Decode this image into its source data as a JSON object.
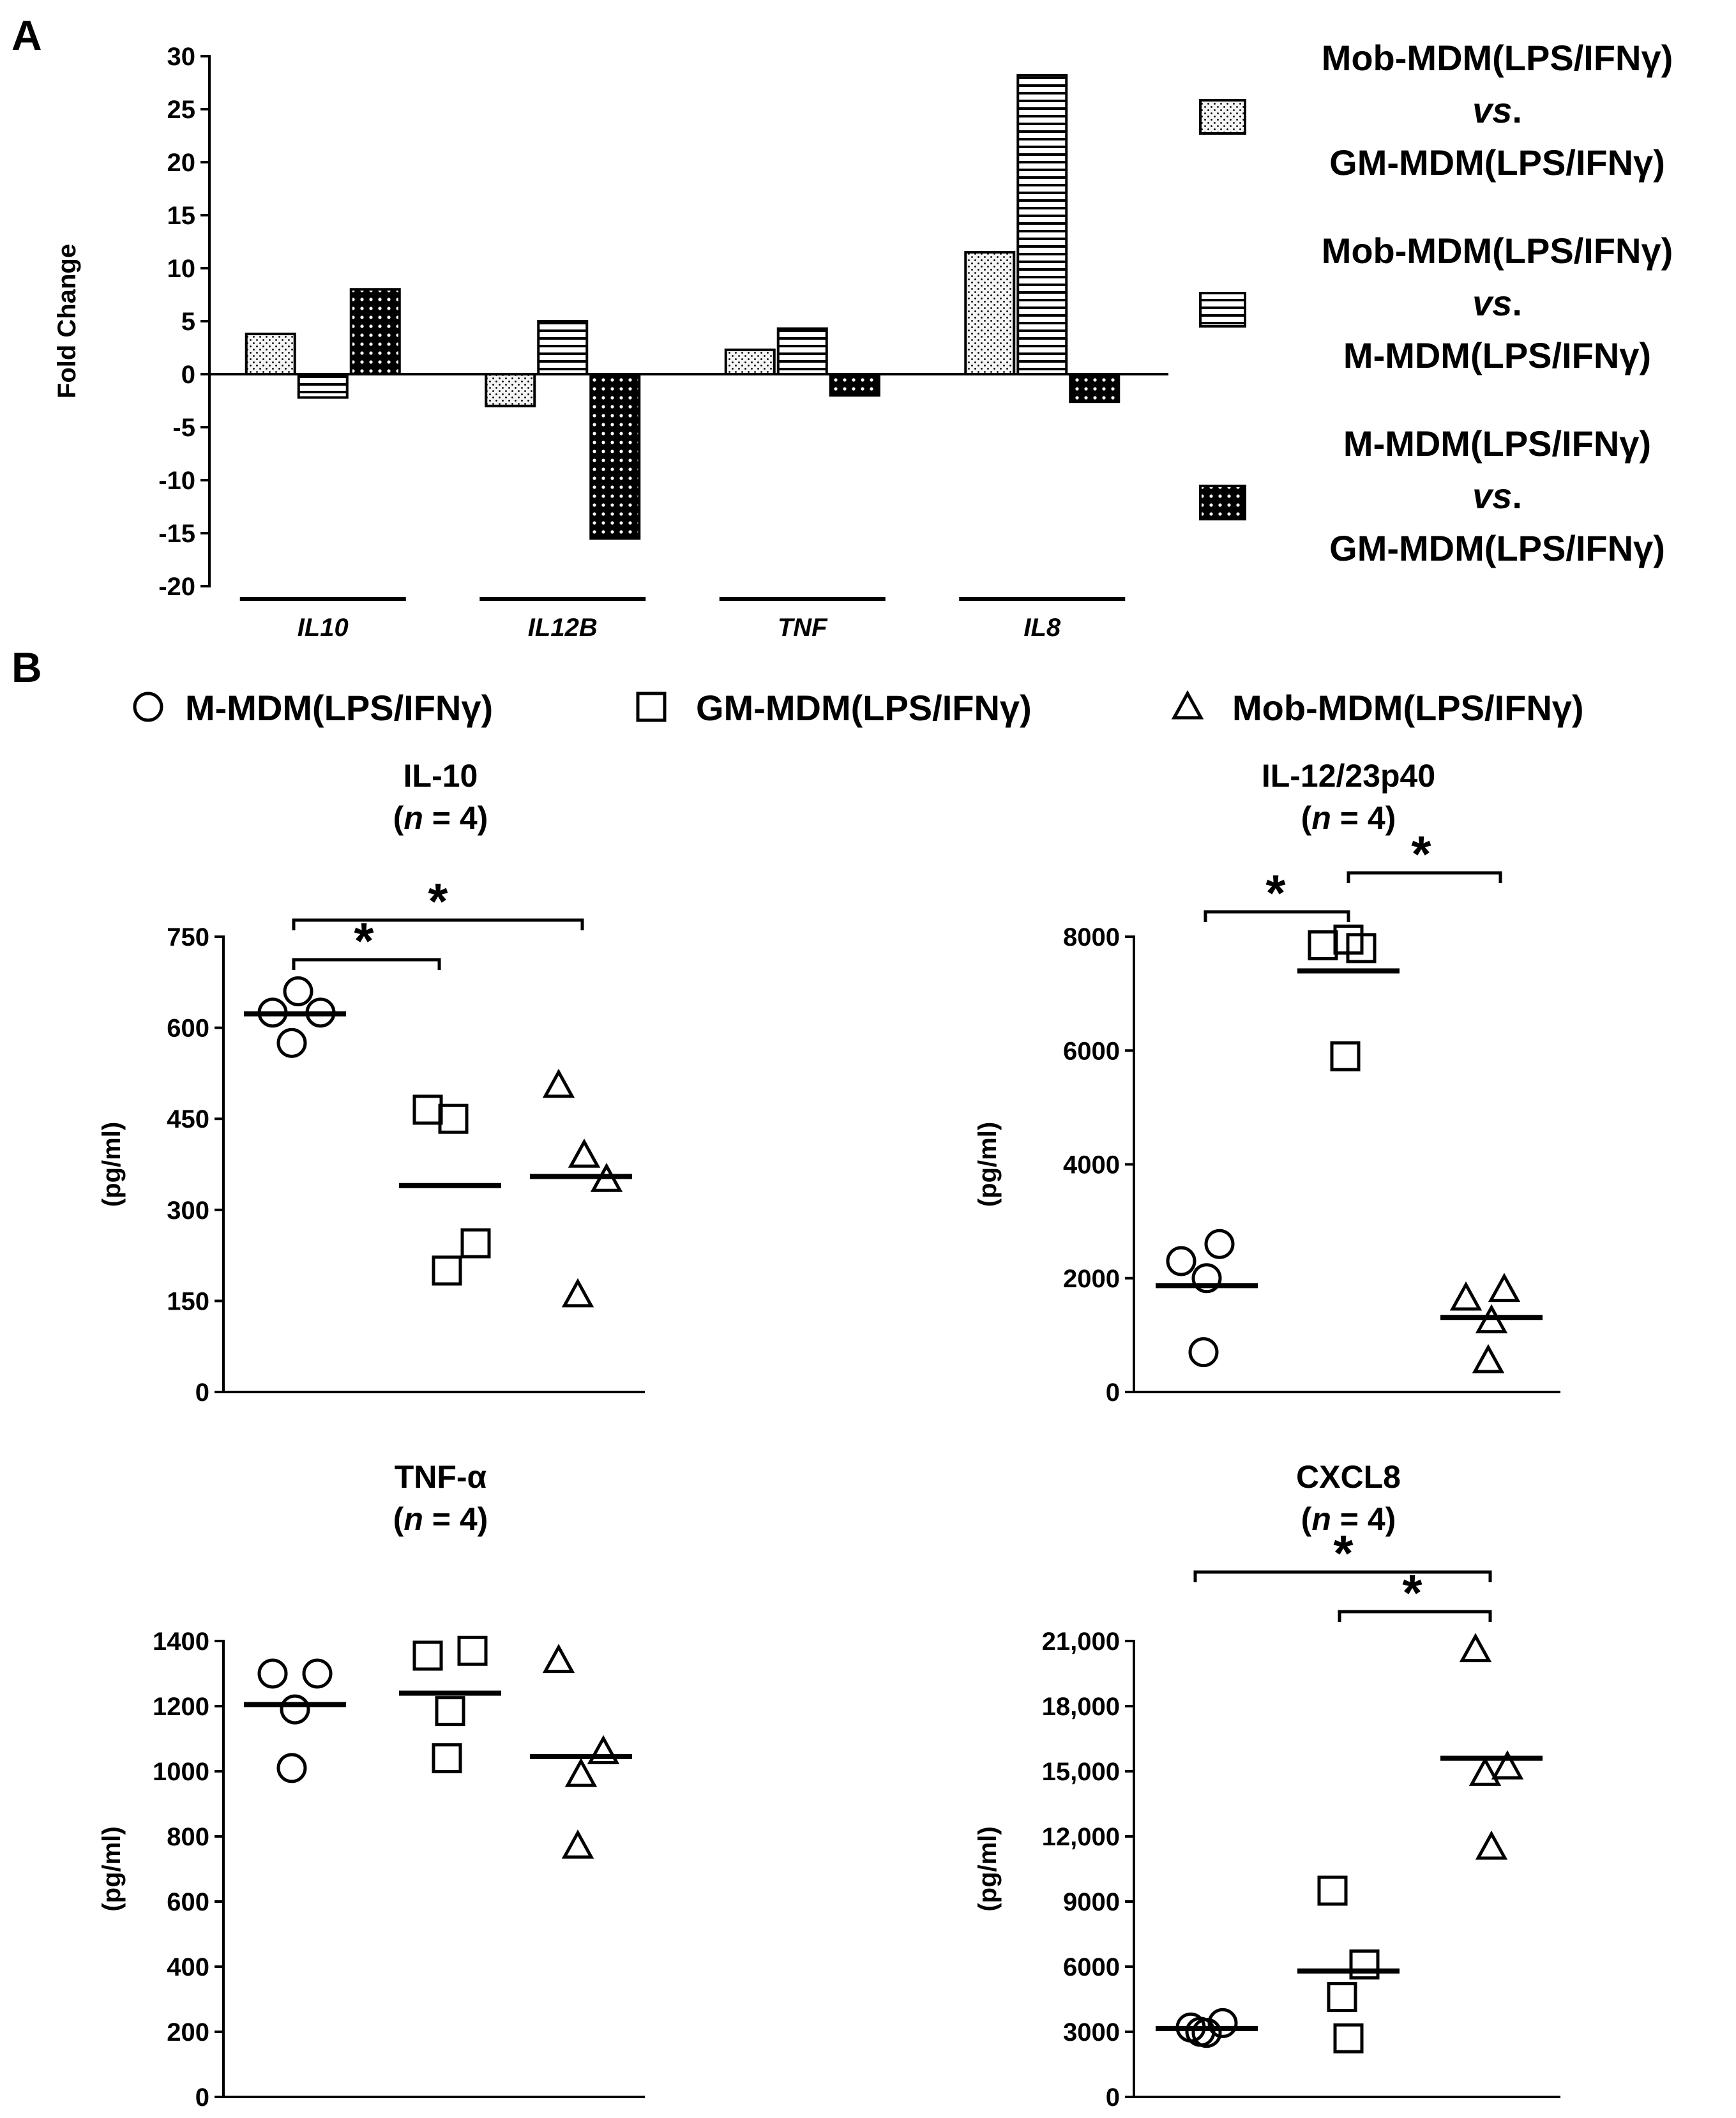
{
  "panel_a": {
    "letter": "A"
  },
  "panel_b": {
    "letter": "B"
  },
  "chart_data": [
    {
      "id": "A",
      "type": "bar",
      "ylabel": "Fold Change",
      "ylim": [
        -20,
        30
      ],
      "yticks": [
        30,
        25,
        20,
        15,
        10,
        5,
        0,
        -5,
        -10,
        -15,
        -20
      ],
      "categories": [
        "IL10",
        "IL12B",
        "TNF",
        "IL8"
      ],
      "series": [
        {
          "name": "Mob-MDM(LPS/IFNγ) vs. GM-MDM(LPS/IFNγ)",
          "legend_lines": [
            "Mob-MDM(LPS/IFNγ)",
            "vs.",
            "GM-MDM(LPS/IFNγ)"
          ],
          "pattern": "dots",
          "values": [
            3.8,
            -3.0,
            2.3,
            11.5
          ]
        },
        {
          "name": "Mob-MDM(LPS/IFNγ) vs. M-MDM(LPS/IFNγ)",
          "legend_lines": [
            "Mob-MDM(LPS/IFNγ)",
            "vs.",
            "M-MDM(LPS/IFNγ)"
          ],
          "pattern": "hlines",
          "values": [
            -2.2,
            5.0,
            4.3,
            28.2
          ]
        },
        {
          "name": "M-MDM(LPS/IFNγ) vs. GM-MDM(LPS/IFNγ)",
          "legend_lines": [
            "M-MDM(LPS/IFNγ)",
            "vs.",
            "GM-MDM(LPS/IFNγ)"
          ],
          "pattern": "crosshatch",
          "values": [
            8.0,
            -15.5,
            -2.0,
            -2.6
          ]
        }
      ]
    },
    {
      "id": "B-IL10",
      "type": "scatter",
      "title": "IL-10",
      "subtitle": "(n = 4)",
      "ylabel": "(pg/ml)",
      "ylim": [
        0,
        750
      ],
      "yticks": [
        "750",
        "600",
        "450",
        "300",
        "150",
        "0"
      ],
      "ytick_values": [
        750,
        600,
        450,
        300,
        150,
        0
      ],
      "groups": [
        {
          "name": "M-MDM(LPS/IFNγ)",
          "marker": "circle",
          "values": [
            625,
            660,
            625,
            575
          ],
          "median": 623
        },
        {
          "name": "GM-MDM(LPS/IFNγ)",
          "marker": "square",
          "values": [
            465,
            450,
            245,
            200
          ],
          "median": 340
        },
        {
          "name": "Mob-MDM(LPS/IFNγ)",
          "marker": "triangle",
          "values": [
            505,
            390,
            350,
            160
          ],
          "median": 355
        }
      ],
      "significance": [
        {
          "from": 0,
          "to": 1,
          "label": "*"
        },
        {
          "from": 0,
          "to": 2,
          "label": "*"
        }
      ]
    },
    {
      "id": "B-IL12",
      "type": "scatter",
      "title": "IL-12/23p40",
      "subtitle": "(n = 4)",
      "ylabel": "(pg/ml)",
      "ylim": [
        0,
        8000
      ],
      "yticks": [
        "8000",
        "6000",
        "4000",
        "2000",
        "0"
      ],
      "ytick_values": [
        8000,
        6000,
        4000,
        2000,
        0
      ],
      "groups": [
        {
          "name": "M-MDM(LPS/IFNγ)",
          "marker": "circle",
          "values": [
            2300,
            2600,
            2000,
            700
          ],
          "median": 1870
        },
        {
          "name": "GM-MDM(LPS/IFNγ)",
          "marker": "square",
          "values": [
            7850,
            7800,
            7950,
            5900
          ],
          "median": 7400
        },
        {
          "name": "Mob-MDM(LPS/IFNγ)",
          "marker": "triangle",
          "values": [
            1650,
            1800,
            1250,
            550
          ],
          "median": 1310
        }
      ],
      "significance": [
        {
          "from": 0,
          "to": 1,
          "label": "*"
        },
        {
          "from": 1,
          "to": 2,
          "label": "*"
        }
      ]
    },
    {
      "id": "B-TNF",
      "type": "scatter",
      "title": "TNF-α",
      "subtitle": "(n = 4)",
      "ylabel": "(pg/ml)",
      "ylim": [
        0,
        1400
      ],
      "yticks": [
        "1400",
        "1200",
        "1000",
        "800",
        "600",
        "400",
        "200",
        "0"
      ],
      "ytick_values": [
        1400,
        1200,
        1000,
        800,
        600,
        400,
        200,
        0
      ],
      "groups": [
        {
          "name": "M-MDM(LPS/IFNγ)",
          "marker": "circle",
          "values": [
            1300,
            1300,
            1190,
            1010
          ],
          "median": 1205
        },
        {
          "name": "GM-MDM(LPS/IFNγ)",
          "marker": "square",
          "values": [
            1355,
            1370,
            1185,
            1040
          ],
          "median": 1240
        },
        {
          "name": "Mob-MDM(LPS/IFNγ)",
          "marker": "triangle",
          "values": [
            1340,
            1060,
            990,
            770
          ],
          "median": 1045
        }
      ],
      "significance": []
    },
    {
      "id": "B-CXCL8",
      "type": "scatter",
      "title": "CXCL8",
      "subtitle": "(n = 4)",
      "ylabel": "(pg/ml)",
      "ylim": [
        0,
        21000
      ],
      "yticks": [
        "21,000",
        "18,000",
        "15,000",
        "12,000",
        "9000",
        "6000",
        "3000",
        "0"
      ],
      "ytick_values": [
        21000,
        18000,
        15000,
        12000,
        9000,
        6000,
        3000,
        0
      ],
      "groups": [
        {
          "name": "M-MDM(LPS/IFNγ)",
          "marker": "circle",
          "values": [
            3200,
            3400,
            3000,
            2950
          ],
          "median": 3150
        },
        {
          "name": "GM-MDM(LPS/IFNγ)",
          "marker": "square",
          "values": [
            9500,
            6100,
            4600,
            2700
          ],
          "median": 5800
        },
        {
          "name": "Mob-MDM(LPS/IFNγ)",
          "marker": "triangle",
          "values": [
            20600,
            15200,
            14900,
            11500
          ],
          "median": 15600
        }
      ],
      "significance": [
        {
          "from": 0,
          "to": 2,
          "label": "*"
        },
        {
          "from": 1,
          "to": 2,
          "label": "*"
        }
      ]
    }
  ]
}
